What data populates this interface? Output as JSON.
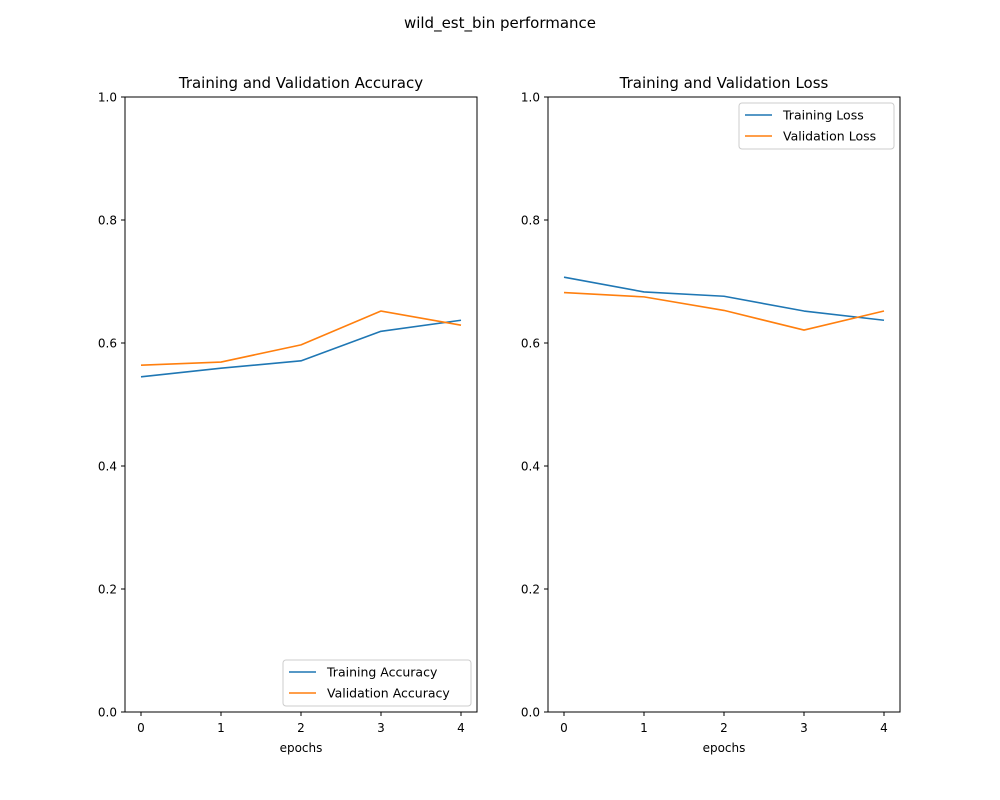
{
  "figure": {
    "title": "wild_est_bin performance"
  },
  "chart_data": [
    {
      "type": "line",
      "title": "Training and Validation Accuracy",
      "xlabel": "epochs",
      "ylabel": "",
      "x": [
        0,
        1,
        2,
        3,
        4
      ],
      "xticks": [
        "0",
        "1",
        "2",
        "3",
        "4"
      ],
      "yticks": [
        "0.0",
        "0.2",
        "0.4",
        "0.6",
        "0.8",
        "1.0"
      ],
      "xlim": [
        -0.2,
        4.2
      ],
      "ylim": [
        0.0,
        1.0
      ],
      "grid": false,
      "legend_position": "lower-right",
      "series": [
        {
          "name": "Training Accuracy",
          "color": "#1f77b4",
          "values": [
            0.545,
            0.559,
            0.571,
            0.619,
            0.637
          ]
        },
        {
          "name": "Validation Accuracy",
          "color": "#ff7f0e",
          "values": [
            0.564,
            0.569,
            0.597,
            0.652,
            0.629
          ]
        }
      ]
    },
    {
      "type": "line",
      "title": "Training and Validation Loss",
      "xlabel": "epochs",
      "ylabel": "",
      "x": [
        0,
        1,
        2,
        3,
        4
      ],
      "xticks": [
        "0",
        "1",
        "2",
        "3",
        "4"
      ],
      "yticks": [
        "0.0",
        "0.2",
        "0.4",
        "0.6",
        "0.8",
        "1.0"
      ],
      "xlim": [
        -0.2,
        4.2
      ],
      "ylim": [
        0.0,
        1.0
      ],
      "grid": false,
      "legend_position": "upper-right",
      "series": [
        {
          "name": "Training Loss",
          "color": "#1f77b4",
          "values": [
            0.707,
            0.683,
            0.676,
            0.652,
            0.637
          ]
        },
        {
          "name": "Validation Loss",
          "color": "#ff7f0e",
          "values": [
            0.682,
            0.675,
            0.653,
            0.621,
            0.652
          ]
        }
      ]
    }
  ]
}
